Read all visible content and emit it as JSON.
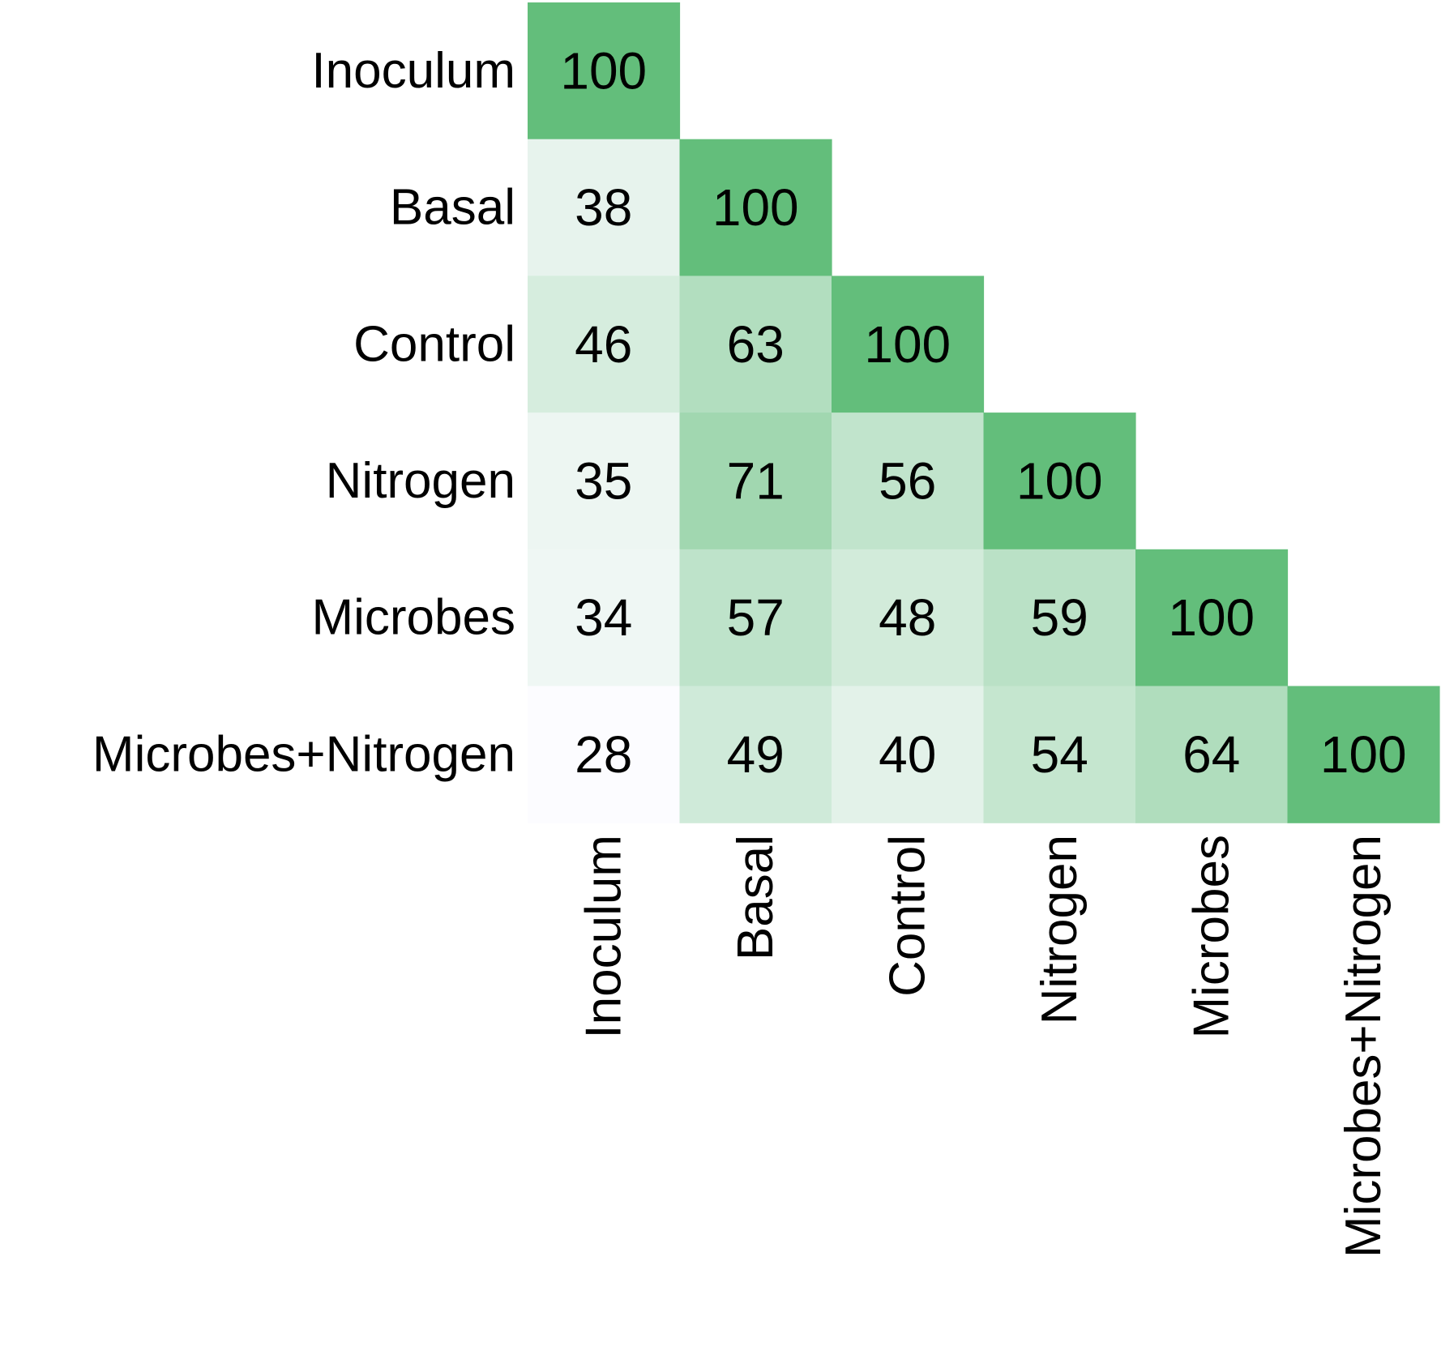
{
  "chart_data": {
    "type": "heatmap",
    "title": "",
    "xlabel": "",
    "ylabel": "",
    "layout": "lower-triangular",
    "rows": [
      "Inoculum",
      "Basal",
      "Control",
      "Nitrogen",
      "Microbes",
      "Microbes+Nitrogen"
    ],
    "columns": [
      "Inoculum",
      "Basal",
      "Control",
      "Nitrogen",
      "Microbes",
      "Microbes+Nitrogen"
    ],
    "values": [
      [
        100
      ],
      [
        38,
        100
      ],
      [
        46,
        63,
        100
      ],
      [
        35,
        71,
        56,
        100
      ],
      [
        34,
        57,
        48,
        59,
        100
      ],
      [
        28,
        49,
        40,
        54,
        64,
        100
      ]
    ],
    "color_scale": {
      "low_value": 28,
      "high_value": 100,
      "low_color": "#fcfcff",
      "high_color": "#63be7b"
    }
  }
}
